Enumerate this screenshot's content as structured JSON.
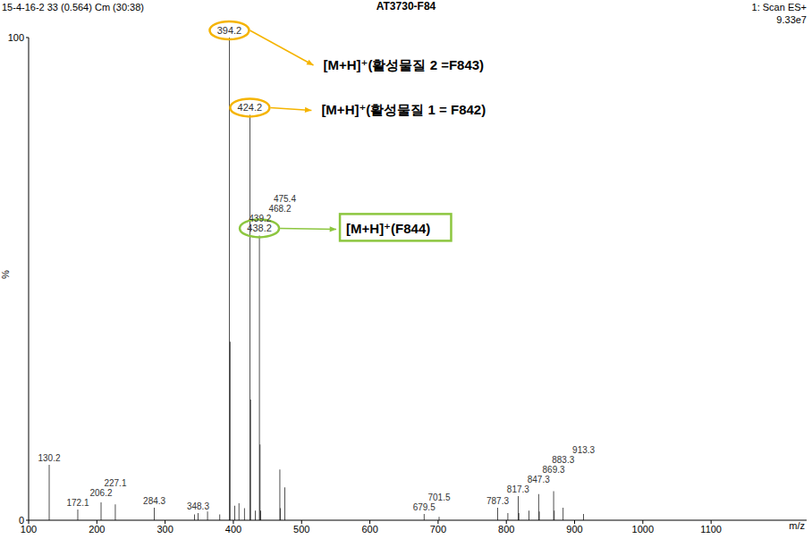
{
  "chart_data": {
    "type": "bar",
    "title": "AT3730-F84",
    "header_texts": [
      "15-4-16-2 33 (0.564) Cm (30:38)",
      "1: Scan ES+",
      "9.33e7"
    ],
    "x_label": "m/z",
    "y_label": "%",
    "color": "#000000",
    "x": [
      130.2,
      172.1,
      206.2,
      227.1,
      284.3,
      343.2,
      348.3,
      362.2,
      380.2,
      394.2,
      395.2,
      402.2,
      408.2,
      416.2,
      424.2,
      425.2,
      432.2,
      438.2,
      439.2,
      440.2,
      468.2,
      469.2,
      475.4,
      679.5,
      701.5,
      787.3,
      802.3,
      817.3,
      818.3,
      833.3,
      847.3,
      848.3,
      869.3,
      870.3,
      883.3,
      913.3
    ],
    "values": [
      11.5,
      2.2,
      3.7,
      3.3,
      2.6,
      1.2,
      1.5,
      1.8,
      1.2,
      100,
      37,
      3,
      3.5,
      2.5,
      84,
      25,
      2,
      59,
      15.7,
      2,
      10.5,
      2.5,
      6.8,
      1.3,
      0.7,
      2.6,
      1.5,
      5,
      1.5,
      2,
      5.4,
      1.8,
      6,
      2,
      2.6,
      1.3
    ],
    "peak_labels": [
      "130.2",
      "172.1",
      "206.2",
      "227.1",
      "284.3",
      null,
      "348.3",
      null,
      null,
      "394.2",
      null,
      null,
      null,
      null,
      "424.2",
      null,
      null,
      "438.2",
      "439.2",
      null,
      "468.2",
      null,
      "475.4",
      "679.5",
      "701.5",
      "787.3",
      null,
      "817.3",
      null,
      null,
      "847.3",
      null,
      "869.3",
      null,
      "883.3",
      "913.3"
    ],
    "annotations": [
      {
        "peak": 394.2,
        "text": "[M+H]⁺(활성물질 2 =F843)",
        "color": "#f5b400"
      },
      {
        "peak": 424.2,
        "text": "[M+H]⁺(활성물질 1 = F842)",
        "color": "#f5b400"
      },
      {
        "peak": 438.2,
        "text": "[M+H]⁺(F844)",
        "color": "#8cc63f"
      }
    ],
    "xlim": [
      100,
      1240
    ],
    "xticks": [
      100,
      200,
      300,
      400,
      500,
      600,
      700,
      800,
      900,
      1000,
      1100
    ],
    "ylim": [
      0,
      100
    ],
    "yticks": [
      0,
      100
    ]
  }
}
